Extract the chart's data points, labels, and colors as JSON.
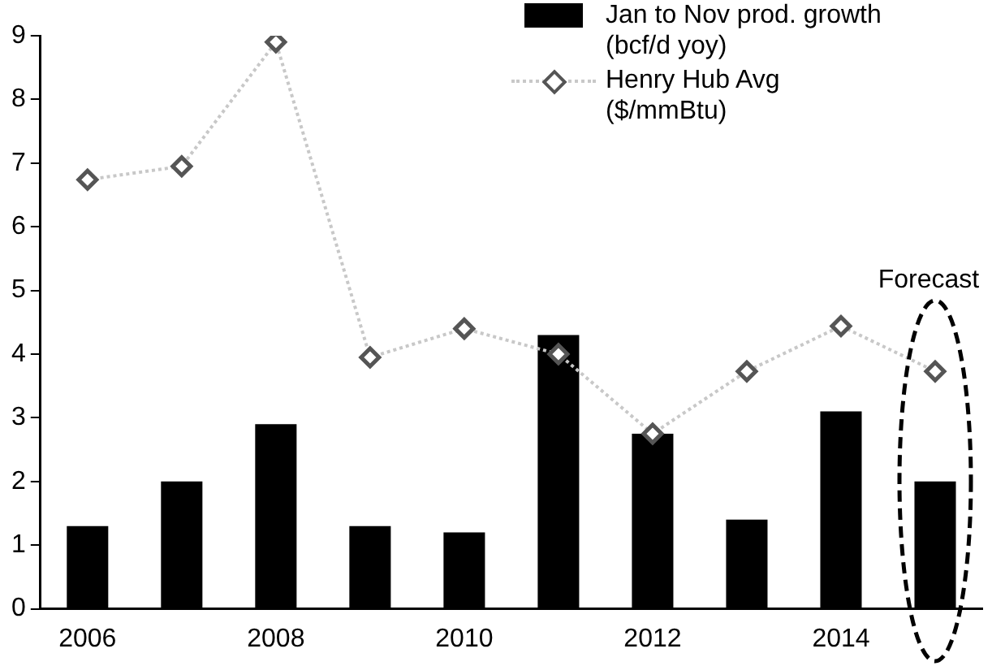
{
  "chart_data": {
    "type": "bar",
    "categories": [
      "2006",
      null,
      "2008",
      null,
      "2010",
      null,
      "2012",
      null,
      "2014",
      null
    ],
    "series": [
      {
        "name": "Jan to Nov prod. growth (bcf/d yoy)",
        "color": "#000000",
        "values": [
          1.3,
          2.0,
          2.9,
          1.3,
          1.2,
          4.3,
          2.75,
          1.4,
          3.1,
          2.0
        ]
      },
      {
        "name": "Henry Hub Avg ($/mmBtu)",
        "type": "line",
        "color": "#c8c8c8",
        "marker": "diamond",
        "line_style": "dotted",
        "values": [
          6.74,
          6.95,
          8.9,
          3.95,
          4.4,
          4.0,
          2.75,
          3.73,
          4.44,
          3.73
        ]
      }
    ],
    "ylim": [
      0,
      9
    ],
    "yticks": [
      0,
      1,
      2,
      3,
      4,
      5,
      6,
      7,
      8,
      9
    ],
    "grid": false,
    "legend": "top right",
    "annotations": [
      "Forecast"
    ]
  }
}
